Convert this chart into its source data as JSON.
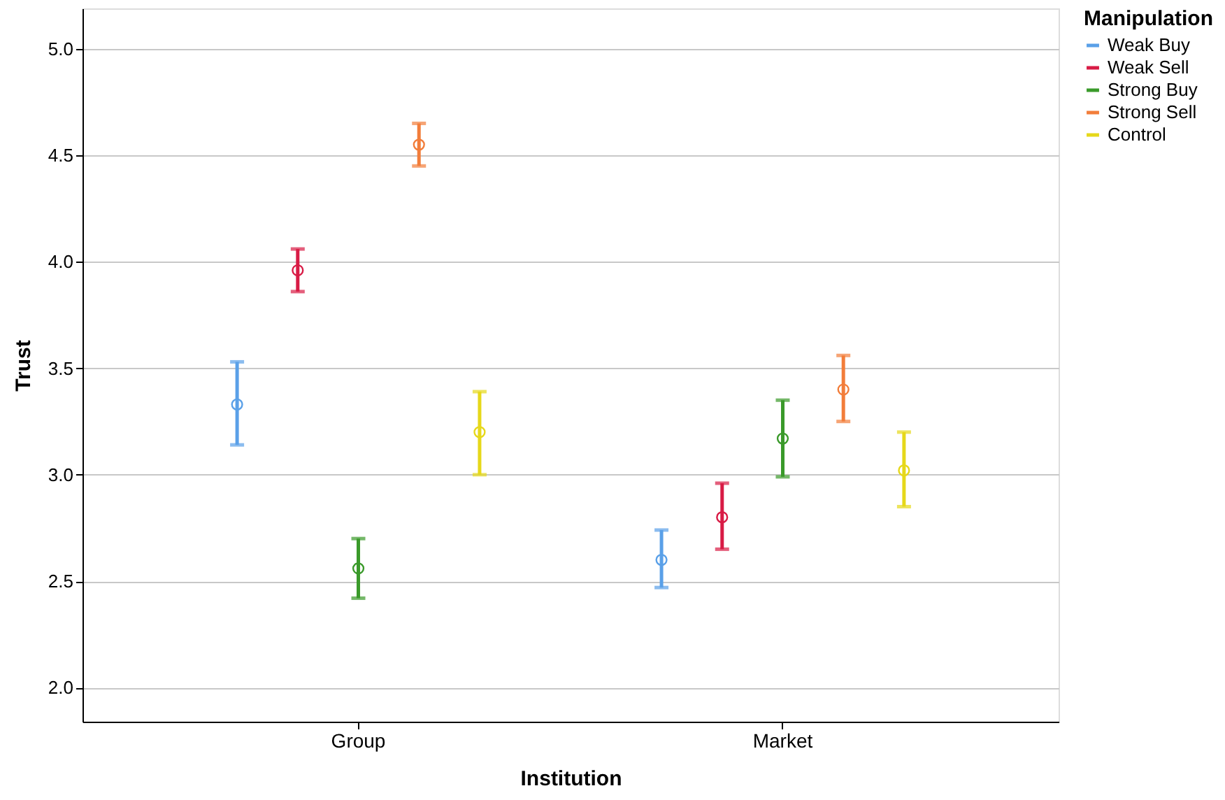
{
  "chart_data": {
    "type": "scatter",
    "xlabel": "Institution",
    "ylabel": "Trust",
    "legend_title": "Manipulation",
    "categories": [
      "Group",
      "Market"
    ],
    "series": [
      {
        "name": "Weak Buy",
        "color": "#5aa0e8",
        "values": [
          3.33,
          2.6
        ],
        "errors": [
          [
            3.14,
            3.53
          ],
          [
            2.47,
            2.74
          ]
        ]
      },
      {
        "name": "Weak Sell",
        "color": "#d81b45",
        "values": [
          3.96,
          2.8
        ],
        "errors": [
          [
            3.86,
            4.06
          ],
          [
            2.65,
            2.96
          ]
        ]
      },
      {
        "name": "Strong Buy",
        "color": "#3a9a2a",
        "values": [
          2.56,
          3.17
        ],
        "errors": [
          [
            2.42,
            2.7
          ],
          [
            2.99,
            3.35
          ]
        ]
      },
      {
        "name": "Strong Sell",
        "color": "#f27d3a",
        "values": [
          4.55,
          3.4
        ],
        "errors": [
          [
            4.45,
            4.65
          ],
          [
            3.25,
            3.56
          ]
        ]
      },
      {
        "name": "Control",
        "color": "#e6d81a",
        "values": [
          3.2,
          3.02
        ],
        "errors": [
          [
            3.0,
            3.39
          ],
          [
            2.85,
            3.2
          ]
        ]
      }
    ],
    "ylim": [
      1.84,
      5.19
    ],
    "yticks": [
      {
        "value": 2,
        "label": "2.0"
      },
      {
        "value": 2.5,
        "label": "2.5"
      },
      {
        "value": 3,
        "label": "3.0"
      },
      {
        "value": 3.5,
        "label": "3.5"
      },
      {
        "value": 4,
        "label": "4.0"
      },
      {
        "value": 4.5,
        "label": "4.5"
      },
      {
        "value": 5,
        "label": "5.0"
      }
    ],
    "grid": "y",
    "legend": "top right",
    "marker": "circle"
  }
}
